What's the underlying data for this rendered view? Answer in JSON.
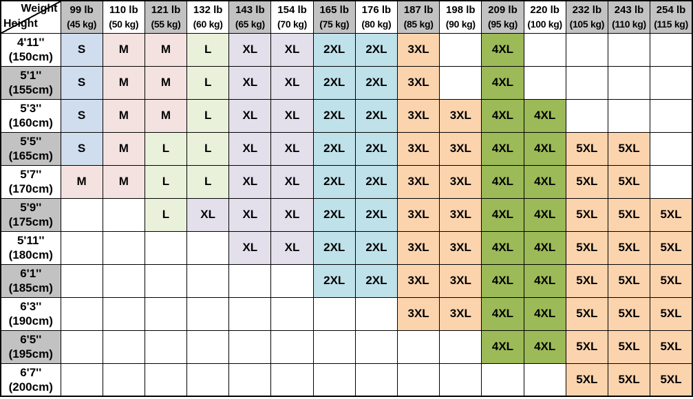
{
  "chart_data": {
    "type": "table",
    "corner": {
      "weight": "Weight",
      "height": "Height"
    },
    "columns": [
      {
        "lb": "99 lb",
        "kg": "(45 kg)",
        "shade": "gray"
      },
      {
        "lb": "110 lb",
        "kg": "(50 kg)",
        "shade": "white"
      },
      {
        "lb": "121 lb",
        "kg": "(55 kg)",
        "shade": "gray"
      },
      {
        "lb": "132 lb",
        "kg": "(60 kg)",
        "shade": "white"
      },
      {
        "lb": "143 lb",
        "kg": "(65 kg)",
        "shade": "gray"
      },
      {
        "lb": "154 lb",
        "kg": "(70 kg)",
        "shade": "white"
      },
      {
        "lb": "165 lb",
        "kg": "(75 kg)",
        "shade": "gray"
      },
      {
        "lb": "176 lb",
        "kg": "(80 kg)",
        "shade": "white"
      },
      {
        "lb": "187 lb",
        "kg": "(85 kg)",
        "shade": "gray"
      },
      {
        "lb": "198 lb",
        "kg": "(90 kg)",
        "shade": "white"
      },
      {
        "lb": "209 lb",
        "kg": "(95 kg)",
        "shade": "gray"
      },
      {
        "lb": "220 lb",
        "kg": "(100 kg)",
        "shade": "white"
      },
      {
        "lb": "232 lb",
        "kg": "(105 kg)",
        "shade": "gray"
      },
      {
        "lb": "243 lb",
        "kg": "(110 kg)",
        "shade": "gray"
      },
      {
        "lb": "254 lb",
        "kg": "(115 kg)",
        "shade": "gray"
      }
    ],
    "rows": [
      {
        "ft": "4'11''",
        "cm": "(150cm)",
        "shade": "white",
        "cells": [
          "S",
          "M",
          "M",
          "L",
          "XL",
          "XL",
          "2XL",
          "2XL",
          "3XL",
          "",
          "4XL",
          "",
          "",
          "",
          ""
        ]
      },
      {
        "ft": "5'1''",
        "cm": "(155cm)",
        "shade": "gray",
        "cells": [
          "S",
          "M",
          "M",
          "L",
          "XL",
          "XL",
          "2XL",
          "2XL",
          "3XL",
          "",
          "4XL",
          "",
          "",
          "",
          ""
        ]
      },
      {
        "ft": "5'3''",
        "cm": "(160cm)",
        "shade": "white",
        "cells": [
          "S",
          "M",
          "M",
          "L",
          "XL",
          "XL",
          "2XL",
          "2XL",
          "3XL",
          "3XL",
          "4XL",
          "4XL",
          "",
          "",
          ""
        ]
      },
      {
        "ft": "5'5''",
        "cm": "(165cm)",
        "shade": "gray",
        "cells": [
          "S",
          "M",
          "L",
          "L",
          "XL",
          "XL",
          "2XL",
          "2XL",
          "3XL",
          "3XL",
          "4XL",
          "4XL",
          "5XL",
          "5XL",
          ""
        ]
      },
      {
        "ft": "5'7''",
        "cm": "(170cm)",
        "shade": "white",
        "cells": [
          "M",
          "M",
          "L",
          "L",
          "XL",
          "XL",
          "2XL",
          "2XL",
          "3XL",
          "3XL",
          "4XL",
          "4XL",
          "5XL",
          "5XL",
          ""
        ]
      },
      {
        "ft": "5'9''",
        "cm": "(175cm)",
        "shade": "gray",
        "cells": [
          "",
          "",
          "L",
          "XL",
          "XL",
          "XL",
          "2XL",
          "2XL",
          "3XL",
          "3XL",
          "4XL",
          "4XL",
          "5XL",
          "5XL",
          "5XL"
        ]
      },
      {
        "ft": "5'11''",
        "cm": "(180cm)",
        "shade": "white",
        "cells": [
          "",
          "",
          "",
          "",
          "XL",
          "XL",
          "2XL",
          "2XL",
          "3XL",
          "3XL",
          "4XL",
          "4XL",
          "5XL",
          "5XL",
          "5XL"
        ]
      },
      {
        "ft": "6'1''",
        "cm": "(185cm)",
        "shade": "gray",
        "cells": [
          "",
          "",
          "",
          "",
          "",
          "",
          "2XL",
          "2XL",
          "3XL",
          "3XL",
          "4XL",
          "4XL",
          "5XL",
          "5XL",
          "5XL"
        ]
      },
      {
        "ft": "6'3''",
        "cm": "(190cm)",
        "shade": "white",
        "cells": [
          "",
          "",
          "",
          "",
          "",
          "",
          "",
          "",
          "3XL",
          "3XL",
          "4XL",
          "4XL",
          "5XL",
          "5XL",
          "5XL"
        ]
      },
      {
        "ft": "6'5''",
        "cm": "(195cm)",
        "shade": "gray",
        "cells": [
          "",
          "",
          "",
          "",
          "",
          "",
          "",
          "",
          "",
          "",
          "4XL",
          "4XL",
          "5XL",
          "5XL",
          "5XL"
        ]
      },
      {
        "ft": "6'7''",
        "cm": "(200cm)",
        "shade": "white",
        "cells": [
          "",
          "",
          "",
          "",
          "",
          "",
          "",
          "",
          "",
          "",
          "",
          "",
          "5XL",
          "5XL",
          "5XL"
        ]
      }
    ]
  },
  "colors": {
    "shades": {
      "gray": "#c2c2c2",
      "white": "#ffffff"
    },
    "sizes": {
      "S": "#cfddee",
      "M": "#f4e2e0",
      "L": "#eaf1db",
      "XL": "#e3dfeb",
      "2XL": "#bfe1ea",
      "3XL": "#fbd4ae",
      "4XL": "#9cba58",
      "5XL": "#fbd4ae"
    },
    "empty_cell": "#ffffff",
    "grid_line": "#000000",
    "text": "#000000"
  }
}
